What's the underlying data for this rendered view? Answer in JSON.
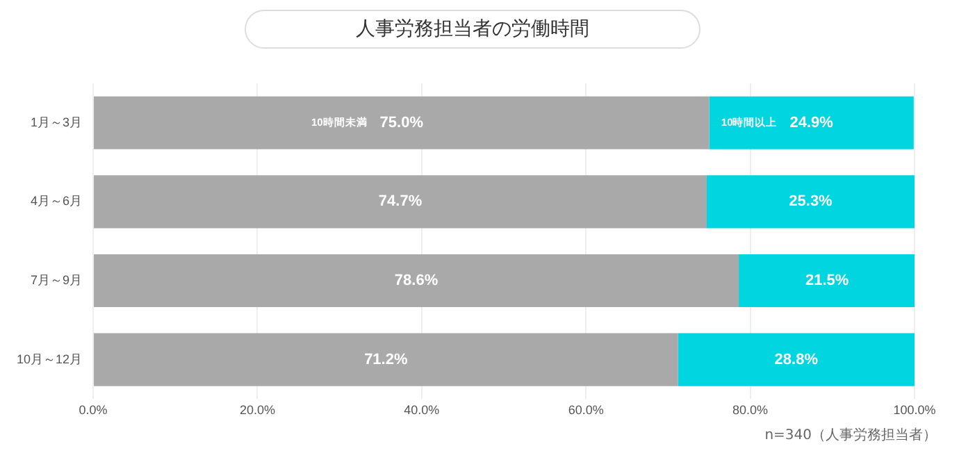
{
  "chart_data": {
    "type": "bar",
    "orientation": "horizontal",
    "stacked": true,
    "title": "人事労務担当者の労働時間",
    "categories": [
      "1月～3月",
      "4月～6月",
      "7月～9月",
      "10月～12月"
    ],
    "series": [
      {
        "name": "10時間未満",
        "color": "#a9a9a9",
        "values": [
          75.0,
          74.7,
          78.6,
          71.2
        ],
        "value_labels": [
          "75.0%",
          "74.7%",
          "78.6%",
          "71.2%"
        ]
      },
      {
        "name": "10時間以上",
        "color": "#00d5e0",
        "values": [
          24.9,
          25.3,
          21.5,
          28.8
        ],
        "value_labels": [
          "24.9%",
          "25.3%",
          "21.5%",
          "28.8%"
        ]
      }
    ],
    "xlim": [
      0,
      100
    ],
    "xticks": [
      {
        "value": 0,
        "label": "0.0%"
      },
      {
        "value": 20,
        "label": "20.0%"
      },
      {
        "value": 40,
        "label": "40.0%"
      },
      {
        "value": 60,
        "label": "60.0%"
      },
      {
        "value": 80,
        "label": "80.0%"
      },
      {
        "value": 100,
        "label": "100.0%"
      }
    ],
    "grid": "x",
    "legend": false,
    "annotations": [
      "n=340（人事労務担当者）"
    ]
  }
}
